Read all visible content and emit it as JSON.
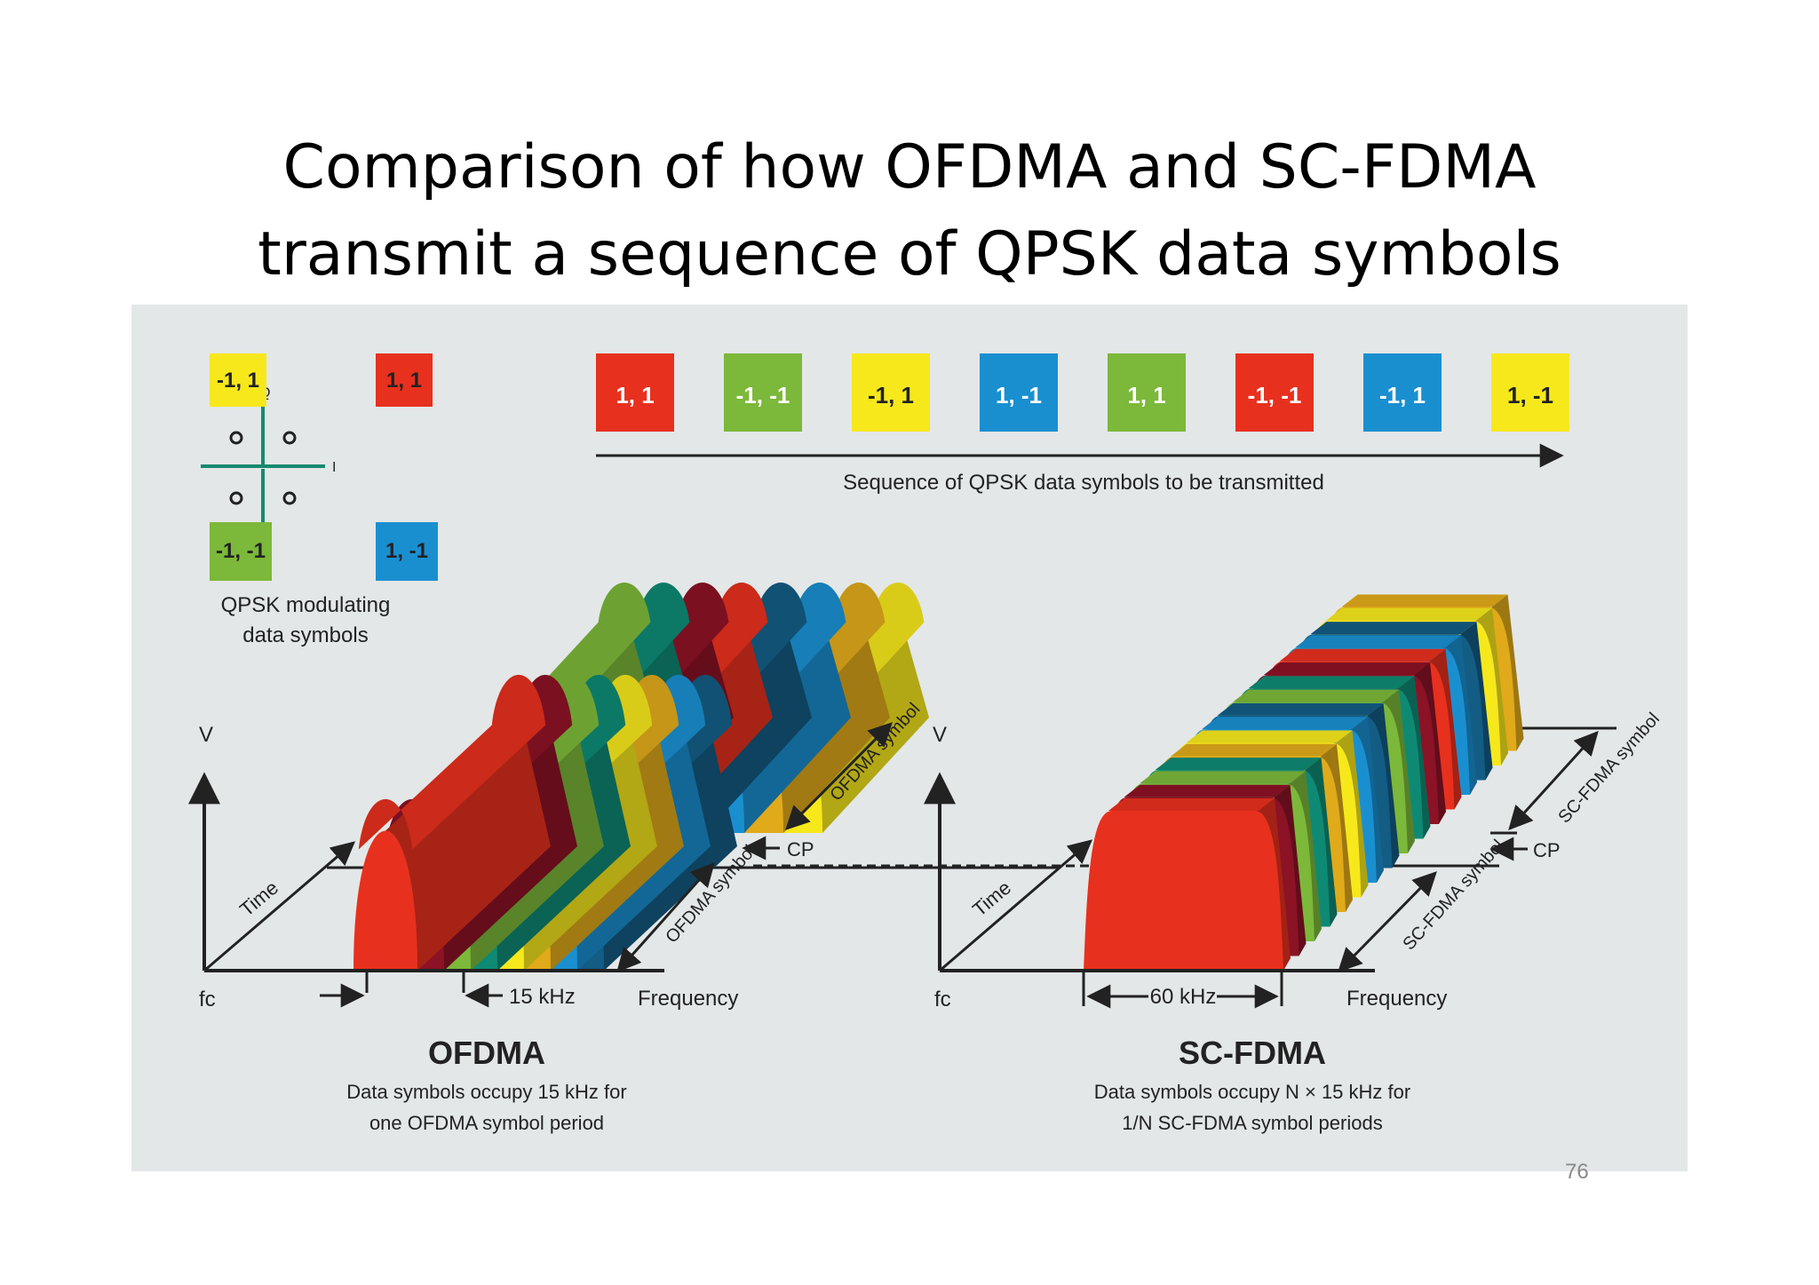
{
  "title": {
    "line1": "Comparison of how OFDMA and SC-FDMA",
    "line2": "transmit a sequence of QPSK data symbols"
  },
  "colors": {
    "red": "#e8301e",
    "green": "#7cb83a",
    "yellow": "#f7e81c",
    "blue": "#1a8fd0",
    "dark_red": "#8c1226",
    "teal": "#0e8a74",
    "dark_blue": "#135c84",
    "orange": "#e0aa1a",
    "background": "#e3e7e7"
  },
  "constellation": {
    "q_label": "Q",
    "i_label": "I",
    "symbols": [
      {
        "label": "-1, 1",
        "color": "yellow"
      },
      {
        "label": "1, 1",
        "color": "red"
      },
      {
        "label": "-1, -1",
        "color": "green"
      },
      {
        "label": "1, -1",
        "color": "blue"
      }
    ],
    "caption_line1": "QPSK modulating",
    "caption_line2": "data symbols"
  },
  "sequence": {
    "symbols": [
      {
        "label": "1, 1",
        "color": "red"
      },
      {
        "label": "-1, -1",
        "color": "green"
      },
      {
        "label": "-1, 1",
        "color": "yellow"
      },
      {
        "label": "1, -1",
        "color": "blue"
      },
      {
        "label": "1, 1",
        "color": "green"
      },
      {
        "label": "-1, -1",
        "color": "red"
      },
      {
        "label": "-1, 1",
        "color": "blue"
      },
      {
        "label": "1, -1",
        "color": "yellow"
      }
    ],
    "caption": "Sequence of QPSK data symbols to be transmitted"
  },
  "ofdma": {
    "v_label": "V",
    "time_label": "Time",
    "fc_label": "fc",
    "frequency_label": "Frequency",
    "spacing_label": "15 kHz",
    "cp_label": "CP",
    "symbol_label_top": "OFDMA symbol",
    "symbol_label_bottom": "OFDMA symbol",
    "name": "OFDMA",
    "desc_line1": "Data symbols occupy 15 kHz for",
    "desc_line2": "one OFDMA symbol period"
  },
  "scfdma": {
    "v_label": "V",
    "time_label": "Time",
    "fc_label": "fc",
    "frequency_label": "Frequency",
    "bandwidth_label": "60 kHz",
    "cp_label": "CP",
    "symbol_label_top": "SC-FDMA symbol",
    "symbol_label_bottom": "SC-FDMA symbol",
    "name": "SC-FDMA",
    "desc_line1": "Data symbols occupy N × 15 kHz for",
    "desc_line2": "1/N SC-FDMA symbol periods"
  },
  "page_number": "76"
}
